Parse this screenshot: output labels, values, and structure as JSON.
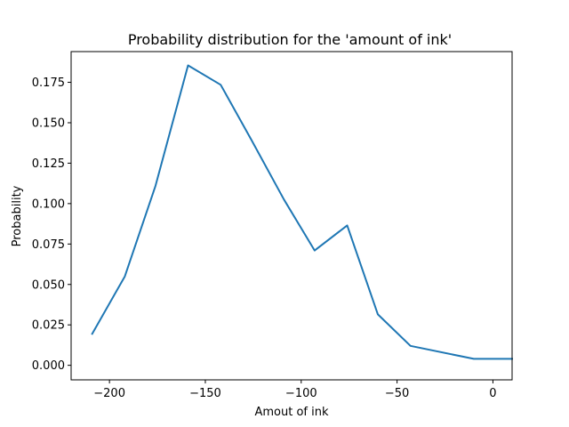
{
  "chart_data": {
    "type": "line",
    "title": "Probability distribution for the 'amount of ink'",
    "xlabel": "Amout of ink",
    "ylabel": "Probability",
    "xlim": [
      -220,
      10
    ],
    "ylim": [
      -0.009,
      0.194
    ],
    "x_ticks": [
      -200,
      -150,
      -100,
      -50,
      0
    ],
    "x_tick_labels": [
      "−200",
      "−150",
      "−100",
      "−50",
      "0"
    ],
    "y_ticks": [
      0.0,
      0.025,
      0.05,
      0.075,
      0.1,
      0.125,
      0.15,
      0.175
    ],
    "y_tick_labels": [
      "0.000",
      "0.025",
      "0.050",
      "0.075",
      "0.100",
      "0.125",
      "0.150",
      "0.175"
    ],
    "grid": false,
    "series": [
      {
        "color": "#1f77b4",
        "x": [
          -209,
          -192,
          -176,
          -159,
          -142,
          -126,
          -109,
          -93,
          -76,
          -60,
          -43,
          -10,
          10
        ],
        "y": [
          0.0195,
          0.055,
          0.111,
          0.1855,
          0.1735,
          0.1395,
          0.1025,
          0.071,
          0.0865,
          0.0315,
          0.012,
          0.004,
          0.004
        ]
      }
    ]
  }
}
